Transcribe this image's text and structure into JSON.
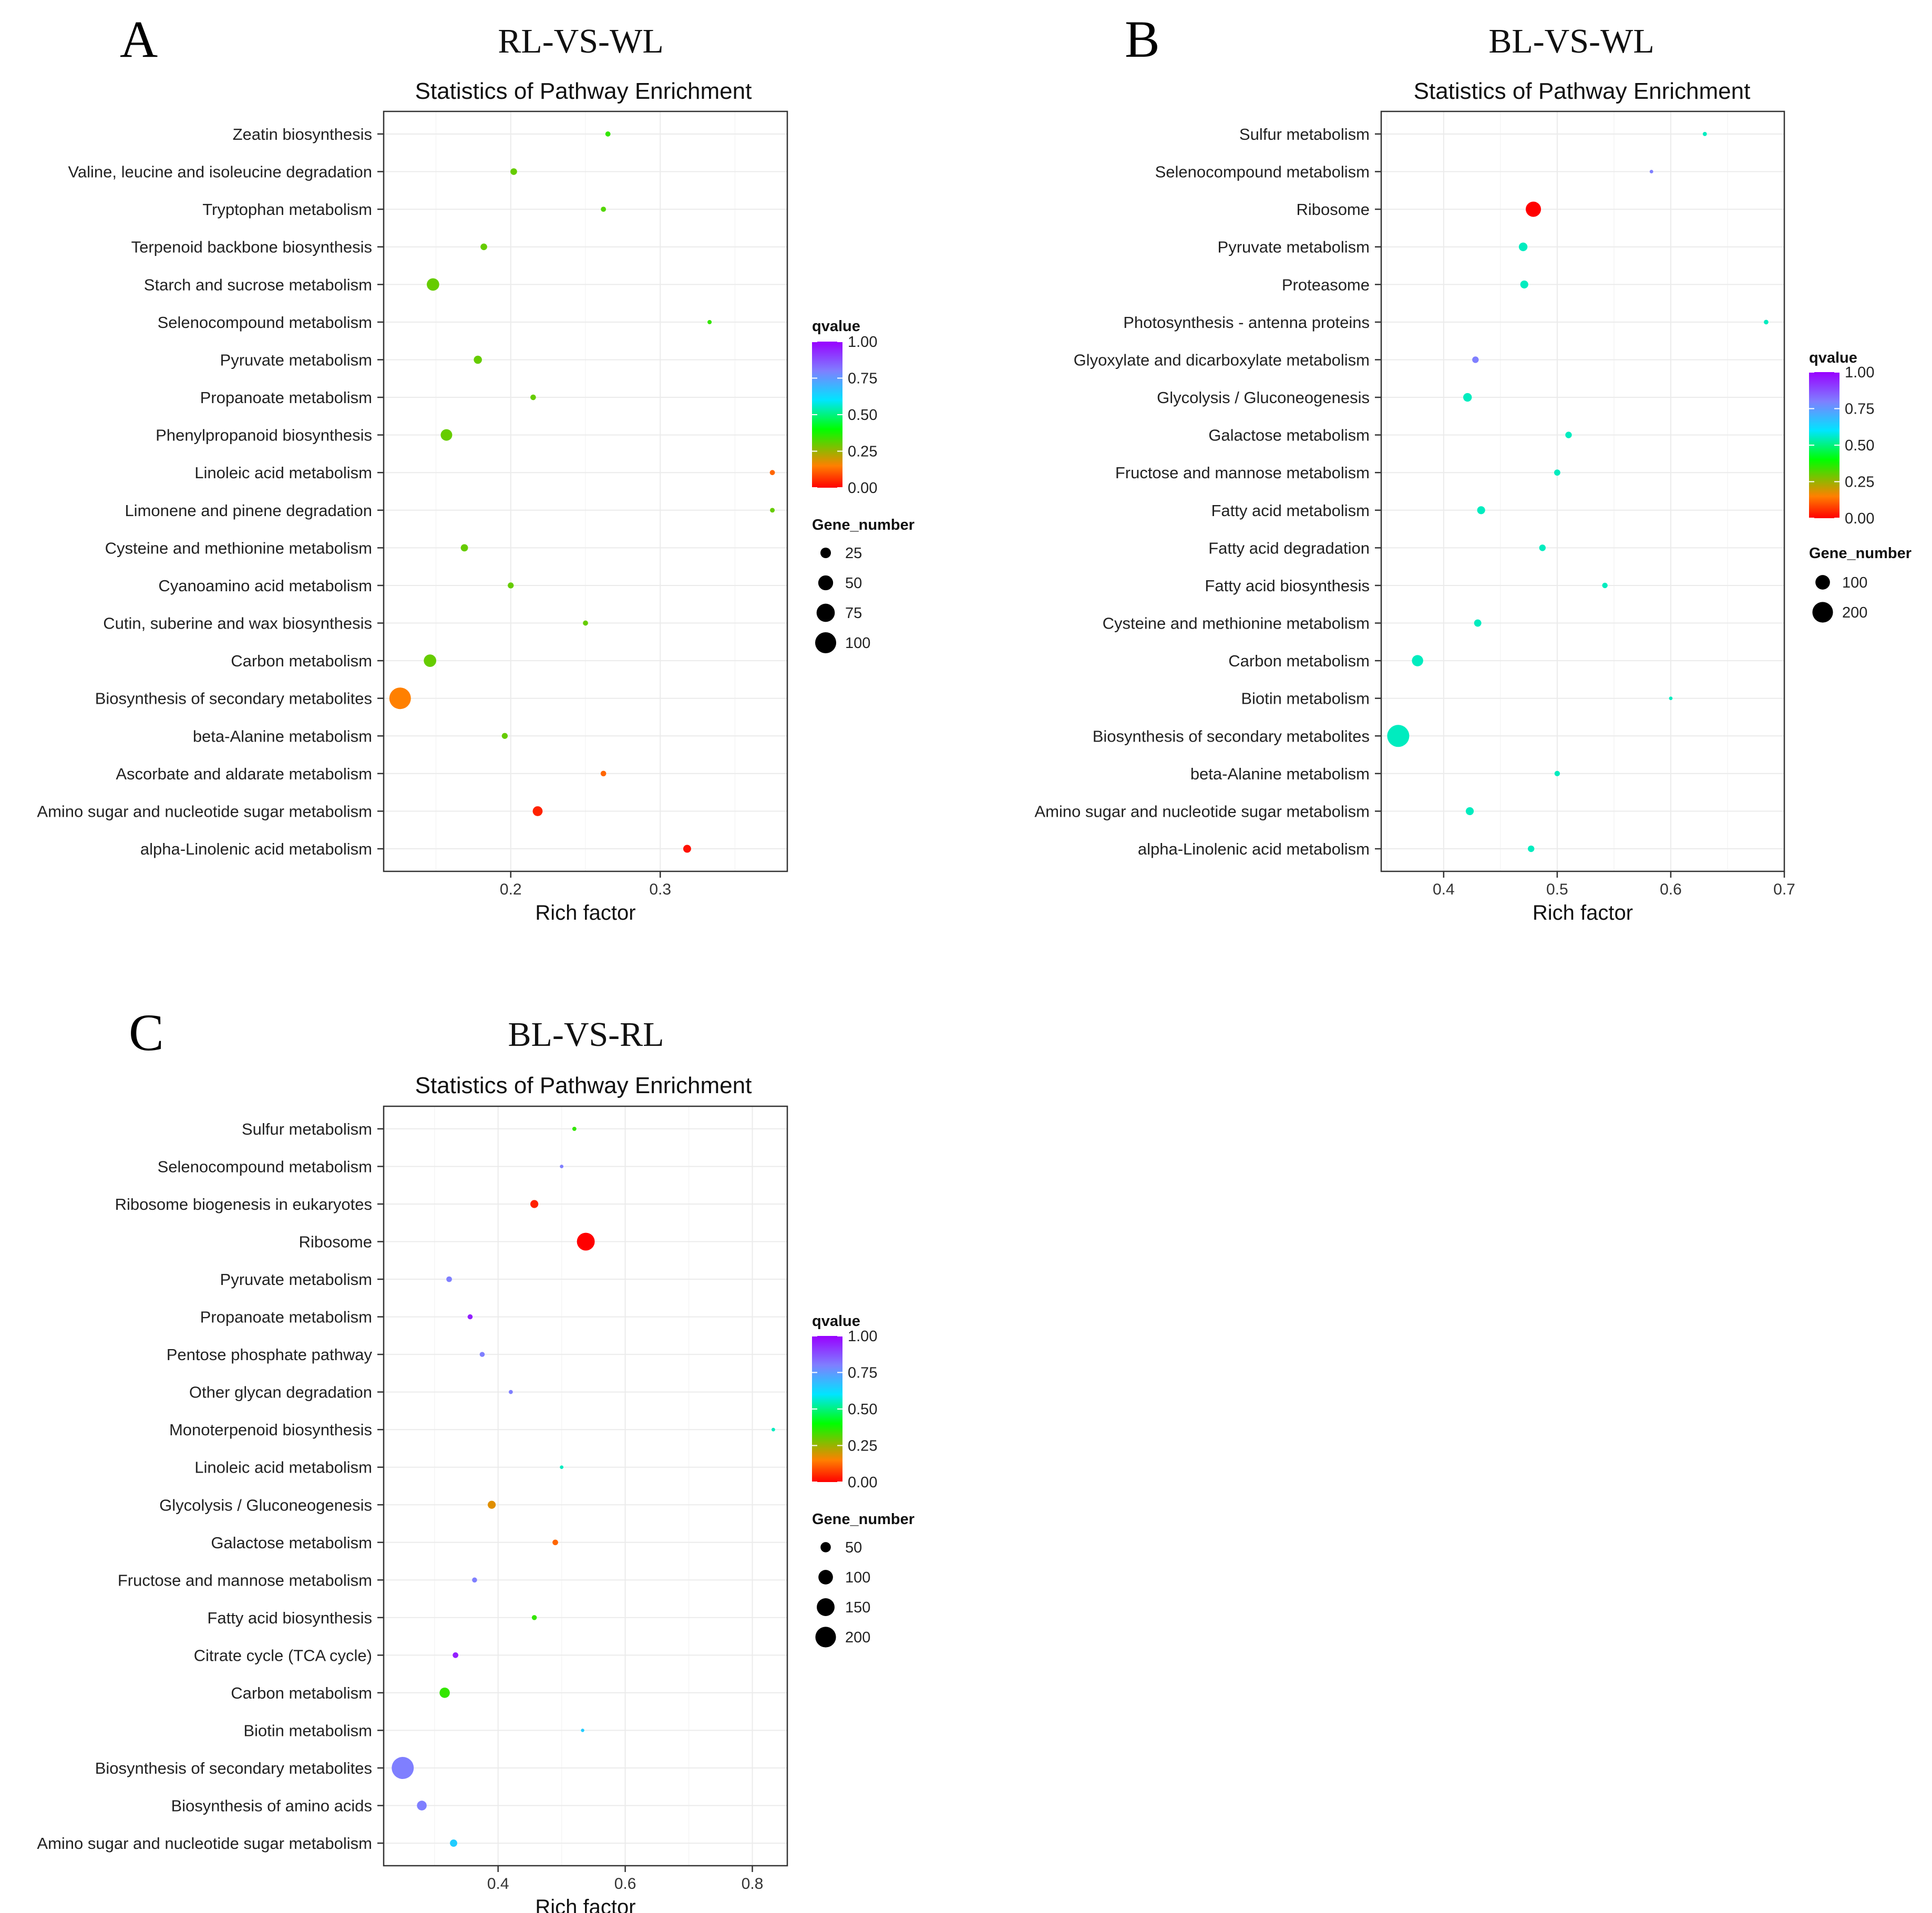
{
  "colors": {
    "scale": [
      "#ff0000",
      "#ff8000",
      "#00ff00",
      "#00e5ff",
      "#7f7fff",
      "#9900ff"
    ]
  },
  "legend": {
    "color_title": "qvalue",
    "size_title": "Gene_number"
  },
  "chart_data": [
    {
      "type": "scatter",
      "panel": "A",
      "comparison": "RL-VS-WL",
      "title": "Statistics of Pathway Enrichment",
      "xlabel": "Rich factor",
      "xlim": [
        0.115,
        0.385
      ],
      "xticks": [
        0.2,
        0.3
      ],
      "xtick_labels": [
        "0.2",
        "0.3"
      ],
      "qvalue_ticks": [
        "1.00",
        "0.75",
        "0.50",
        "0.25",
        "0.00"
      ],
      "gene_sizes": [
        25,
        50,
        75,
        100
      ],
      "gene_labels": [
        "25",
        "50",
        "75",
        "100"
      ],
      "size_range": [
        5,
        110
      ],
      "points": [
        {
          "pathway": "Zeatin biosynthesis",
          "rich_factor": 0.265,
          "qvalue": 0.35,
          "gene_number": 6
        },
        {
          "pathway": "Valine, leucine and isoleucine degradation",
          "rich_factor": 0.202,
          "qvalue": 0.3,
          "gene_number": 10
        },
        {
          "pathway": "Tryptophan metabolism",
          "rich_factor": 0.262,
          "qvalue": 0.32,
          "gene_number": 6
        },
        {
          "pathway": "Terpenoid backbone biosynthesis",
          "rich_factor": 0.182,
          "qvalue": 0.3,
          "gene_number": 10
        },
        {
          "pathway": "Starch and sucrose metabolism",
          "rich_factor": 0.148,
          "qvalue": 0.3,
          "gene_number": 35
        },
        {
          "pathway": "Selenocompound metabolism",
          "rich_factor": 0.333,
          "qvalue": 0.35,
          "gene_number": 4
        },
        {
          "pathway": "Pyruvate metabolism",
          "rich_factor": 0.178,
          "qvalue": 0.3,
          "gene_number": 15
        },
        {
          "pathway": "Propanoate metabolism",
          "rich_factor": 0.215,
          "qvalue": 0.3,
          "gene_number": 7
        },
        {
          "pathway": "Phenylpropanoid biosynthesis",
          "rich_factor": 0.157,
          "qvalue": 0.3,
          "gene_number": 30
        },
        {
          "pathway": "Linoleic acid metabolism",
          "rich_factor": 0.375,
          "qvalue": 0.12,
          "gene_number": 6
        },
        {
          "pathway": "Limonene and pinene degradation",
          "rich_factor": 0.375,
          "qvalue": 0.3,
          "gene_number": 5
        },
        {
          "pathway": "Cysteine and methionine metabolism",
          "rich_factor": 0.169,
          "qvalue": 0.3,
          "gene_number": 12
        },
        {
          "pathway": "Cyanoamino acid metabolism",
          "rich_factor": 0.2,
          "qvalue": 0.3,
          "gene_number": 8
        },
        {
          "pathway": "Cutin, suberine and wax biosynthesis",
          "rich_factor": 0.25,
          "qvalue": 0.3,
          "gene_number": 6
        },
        {
          "pathway": "Carbon metabolism",
          "rich_factor": 0.146,
          "qvalue": 0.3,
          "gene_number": 35
        },
        {
          "pathway": "Biosynthesis of secondary metabolites",
          "rich_factor": 0.126,
          "qvalue": 0.15,
          "gene_number": 105
        },
        {
          "pathway": "beta-Alanine metabolism",
          "rich_factor": 0.196,
          "qvalue": 0.3,
          "gene_number": 8
        },
        {
          "pathway": "Ascorbate and aldarate metabolism",
          "rich_factor": 0.262,
          "qvalue": 0.12,
          "gene_number": 7
        },
        {
          "pathway": "Amino sugar and nucleotide sugar metabolism",
          "rich_factor": 0.218,
          "qvalue": 0.04,
          "gene_number": 22
        },
        {
          "pathway": "alpha-Linolenic acid metabolism",
          "rich_factor": 0.318,
          "qvalue": 0.02,
          "gene_number": 14
        }
      ]
    },
    {
      "type": "scatter",
      "panel": "B",
      "comparison": "BL-VS-WL",
      "title": "Statistics of Pathway Enrichment",
      "xlabel": "Rich factor",
      "xlim": [
        0.345,
        0.7
      ],
      "xticks": [
        0.4,
        0.5,
        0.6,
        0.7
      ],
      "xtick_labels": [
        "0.4",
        "0.5",
        "0.6",
        "0.7"
      ],
      "qvalue_ticks": [
        "1.00",
        "0.75",
        "0.50",
        "0.25",
        "0.00"
      ],
      "gene_sizes": [
        100,
        200
      ],
      "gene_labels": [
        "100",
        "200"
      ],
      "size_range": [
        5,
        230
      ],
      "points": [
        {
          "pathway": "Sulfur metabolism",
          "rich_factor": 0.63,
          "qvalue": 0.55,
          "gene_number": 8
        },
        {
          "pathway": "Selenocompound metabolism",
          "rich_factor": 0.583,
          "qvalue": 0.8,
          "gene_number": 6
        },
        {
          "pathway": "Ribosome",
          "rich_factor": 0.479,
          "qvalue": 0.0,
          "gene_number": 110
        },
        {
          "pathway": "Pyruvate metabolism",
          "rich_factor": 0.47,
          "qvalue": 0.55,
          "gene_number": 35
        },
        {
          "pathway": "Proteasome",
          "rich_factor": 0.471,
          "qvalue": 0.55,
          "gene_number": 30
        },
        {
          "pathway": "Photosynthesis - antenna proteins",
          "rich_factor": 0.684,
          "qvalue": 0.55,
          "gene_number": 10
        },
        {
          "pathway": "Glyoxylate and dicarboxylate metabolism",
          "rich_factor": 0.428,
          "qvalue": 0.8,
          "gene_number": 20
        },
        {
          "pathway": "Glycolysis / Gluconeogenesis",
          "rich_factor": 0.421,
          "qvalue": 0.55,
          "gene_number": 35
        },
        {
          "pathway": "Galactose metabolism",
          "rich_factor": 0.51,
          "qvalue": 0.55,
          "gene_number": 20
        },
        {
          "pathway": "Fructose and mannose metabolism",
          "rich_factor": 0.5,
          "qvalue": 0.55,
          "gene_number": 18
        },
        {
          "pathway": "Fatty acid metabolism",
          "rich_factor": 0.433,
          "qvalue": 0.55,
          "gene_number": 30
        },
        {
          "pathway": "Fatty acid degradation",
          "rich_factor": 0.487,
          "qvalue": 0.55,
          "gene_number": 20
        },
        {
          "pathway": "Fatty acid biosynthesis",
          "rich_factor": 0.542,
          "qvalue": 0.55,
          "gene_number": 14
        },
        {
          "pathway": "Cysteine and methionine metabolism",
          "rich_factor": 0.43,
          "qvalue": 0.55,
          "gene_number": 25
        },
        {
          "pathway": "Carbon metabolism",
          "rich_factor": 0.377,
          "qvalue": 0.55,
          "gene_number": 60
        },
        {
          "pathway": "Biotin metabolism",
          "rich_factor": 0.6,
          "qvalue": 0.55,
          "gene_number": 6
        },
        {
          "pathway": "Biosynthesis of secondary metabolites",
          "rich_factor": 0.36,
          "qvalue": 0.55,
          "gene_number": 230
        },
        {
          "pathway": "beta-Alanine metabolism",
          "rich_factor": 0.5,
          "qvalue": 0.55,
          "gene_number": 14
        },
        {
          "pathway": "Amino sugar and nucleotide sugar metabolism",
          "rich_factor": 0.423,
          "qvalue": 0.55,
          "gene_number": 30
        },
        {
          "pathway": "alpha-Linolenic acid metabolism",
          "rich_factor": 0.477,
          "qvalue": 0.55,
          "gene_number": 20
        }
      ]
    },
    {
      "type": "scatter",
      "panel": "C",
      "comparison": "BL-VS-RL",
      "title": "Statistics of Pathway Enrichment",
      "xlabel": "Rich factor",
      "xlim": [
        0.22,
        0.855
      ],
      "xticks": [
        0.4,
        0.6,
        0.8
      ],
      "xtick_labels": [
        "0.4",
        "0.6",
        "0.8"
      ],
      "qvalue_ticks": [
        "1.00",
        "0.75",
        "0.50",
        "0.25",
        "0.00"
      ],
      "gene_sizes": [
        50,
        100,
        150,
        200
      ],
      "gene_labels": [
        "50",
        "100",
        "150",
        "200"
      ],
      "size_range": [
        5,
        230
      ],
      "points": [
        {
          "pathway": "Sulfur metabolism",
          "rich_factor": 0.52,
          "qvalue": 0.35,
          "gene_number": 8
        },
        {
          "pathway": "Selenocompound metabolism",
          "rich_factor": 0.5,
          "qvalue": 0.8,
          "gene_number": 6
        },
        {
          "pathway": "Ribosome biogenesis in eukaryotes",
          "rich_factor": 0.457,
          "qvalue": 0.04,
          "gene_number": 30
        },
        {
          "pathway": "Ribosome",
          "rich_factor": 0.538,
          "qvalue": 0.0,
          "gene_number": 150
        },
        {
          "pathway": "Pyruvate metabolism",
          "rich_factor": 0.323,
          "qvalue": 0.8,
          "gene_number": 15
        },
        {
          "pathway": "Propanoate metabolism",
          "rich_factor": 0.356,
          "qvalue": 0.95,
          "gene_number": 12
        },
        {
          "pathway": "Pentose phosphate pathway",
          "rich_factor": 0.375,
          "qvalue": 0.8,
          "gene_number": 12
        },
        {
          "pathway": "Other glycan degradation",
          "rich_factor": 0.42,
          "qvalue": 0.8,
          "gene_number": 8
        },
        {
          "pathway": "Monoterpenoid biosynthesis",
          "rich_factor": 0.833,
          "qvalue": 0.55,
          "gene_number": 6
        },
        {
          "pathway": "Linoleic acid metabolism",
          "rich_factor": 0.5,
          "qvalue": 0.55,
          "gene_number": 6
        },
        {
          "pathway": "Glycolysis / Gluconeogenesis",
          "rich_factor": 0.39,
          "qvalue": 0.18,
          "gene_number": 30
        },
        {
          "pathway": "Galactose metabolism",
          "rich_factor": 0.49,
          "qvalue": 0.12,
          "gene_number": 15
        },
        {
          "pathway": "Fructose and mannose metabolism",
          "rich_factor": 0.363,
          "qvalue": 0.8,
          "gene_number": 12
        },
        {
          "pathway": "Fatty acid biosynthesis",
          "rich_factor": 0.457,
          "qvalue": 0.35,
          "gene_number": 12
        },
        {
          "pathway": "Citrate cycle (TCA cycle)",
          "rich_factor": 0.333,
          "qvalue": 0.95,
          "gene_number": 15
        },
        {
          "pathway": "Carbon metabolism",
          "rich_factor": 0.316,
          "qvalue": 0.35,
          "gene_number": 50
        },
        {
          "pathway": "Biotin metabolism",
          "rich_factor": 0.533,
          "qvalue": 0.65,
          "gene_number": 5
        },
        {
          "pathway": "Biosynthesis of secondary metabolites",
          "rich_factor": 0.25,
          "qvalue": 0.8,
          "gene_number": 230
        },
        {
          "pathway": "Biosynthesis of amino acids",
          "rich_factor": 0.28,
          "qvalue": 0.8,
          "gene_number": 45
        },
        {
          "pathway": "Amino sugar and nucleotide sugar metabolism",
          "rich_factor": 0.33,
          "qvalue": 0.65,
          "gene_number": 25
        }
      ]
    }
  ]
}
